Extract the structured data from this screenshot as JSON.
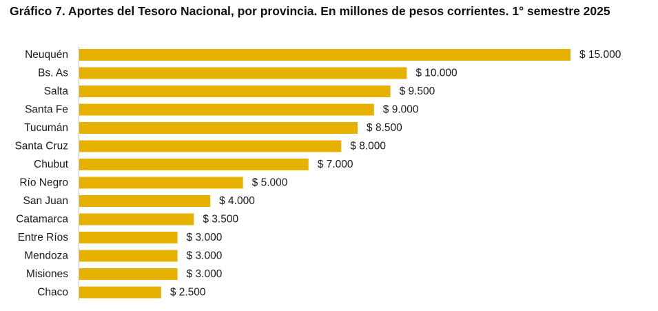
{
  "title": "Gráfico 7. Aportes del Tesoro Nacional, por provincia. En millones de pesos corrientes. 1° semestre 2025",
  "colors": {
    "bar": "#e6b100",
    "axis": "#c8c8c8",
    "text": "#1a1a1a"
  },
  "chart_data": {
    "type": "bar",
    "orientation": "horizontal",
    "title": "Gráfico 7. Aportes del Tesoro Nacional, por provincia. En millones de pesos corrientes. 1° semestre 2025",
    "categories": [
      "Neuquén",
      "Bs. As",
      "Salta",
      "Santa Fe",
      "Tucumán",
      "Santa Cruz",
      "Chubut",
      "Río Negro",
      "San Juan",
      "Catamarca",
      "Entre Ríos",
      "Mendoza",
      "Misiones",
      "Chaco"
    ],
    "values": [
      15000,
      10000,
      9500,
      9000,
      8500,
      8000,
      7000,
      5000,
      4000,
      3500,
      3000,
      3000,
      3000,
      2500
    ],
    "value_labels": [
      "$ 15.000",
      "$ 10.000",
      "$ 9.500",
      "$ 9.000",
      "$ 8.500",
      "$ 8.000",
      "$ 7.000",
      "$ 5.000",
      "$ 4.000",
      "$ 3.500",
      "$ 3.000",
      "$ 3.000",
      "$ 3.000",
      "$ 2.500"
    ],
    "xlim": [
      0,
      15000
    ],
    "xlabel": "",
    "ylabel": "",
    "grid": false,
    "legend": "none"
  }
}
